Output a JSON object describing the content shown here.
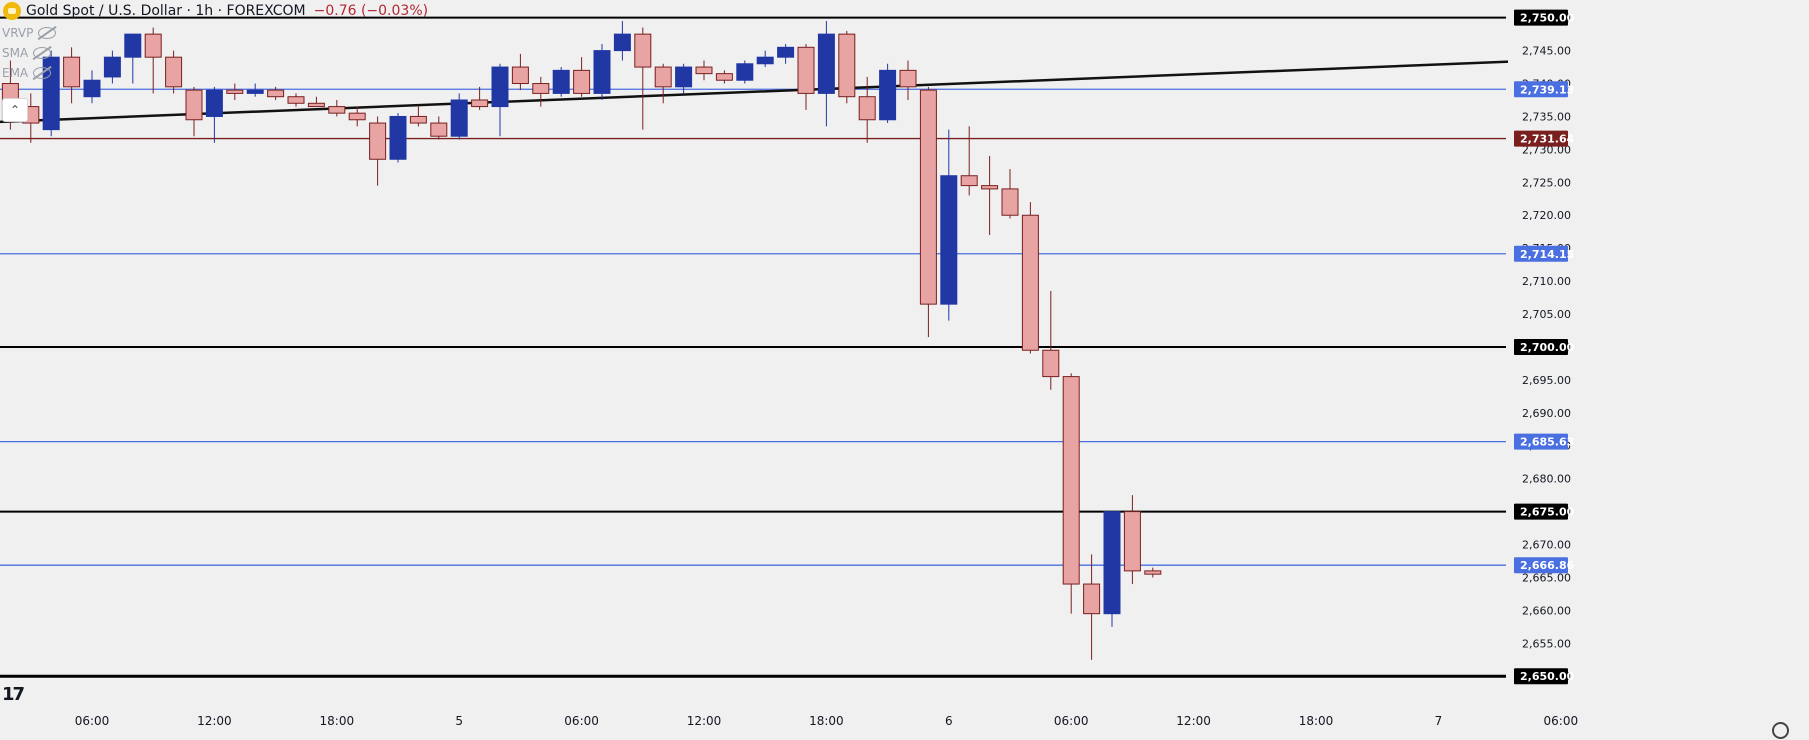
{
  "header": {
    "symbol": "Gold Spot / U.S. Dollar · 1h · FOREXCOM",
    "change": "−0.76 (−0.03%)"
  },
  "indicators": [
    {
      "label": "VRVP",
      "icon": "eye-off-icon"
    },
    {
      "label": "SMA",
      "icon": "eye-off-icon"
    },
    {
      "label": "EMA",
      "icon": "eye-off-icon"
    }
  ],
  "collapse_icon": "chevron-up-icon",
  "logo_text": "17",
  "colors": {
    "background": "#f0f0f0",
    "bull": "#2137a3",
    "bear": "#e8a3a3",
    "bear_border": "#7a1f1f",
    "blue_level": "#4a6fe0",
    "black_level": "#000000",
    "red_level": "#7a1f1f",
    "trendline": "#111111"
  },
  "chart_data": {
    "type": "candlestick",
    "title": "Gold Spot / U.S. Dollar · 1h · FOREXCOM",
    "ylim": [
      2647,
      2752
    ],
    "y_ticks": [
      "2,650.00",
      "2,655.00",
      "2,660.00",
      "2,665.00",
      "2,670.00",
      "2,675.00",
      "2,680.00",
      "2,685.00",
      "2,690.00",
      "2,695.00",
      "2,700.00",
      "2,705.00",
      "2,710.00",
      "2,715.00",
      "2,720.00",
      "2,725.00",
      "2,730.00",
      "2,735.00",
      "2,740.00",
      "2,745.00",
      "2,750.00"
    ],
    "x_ticks": [
      {
        "label": "06:00",
        "t": "4 06:00"
      },
      {
        "label": "12:00",
        "t": "4 12:00"
      },
      {
        "label": "18:00",
        "t": "4 18:00"
      },
      {
        "label": "5",
        "t": "5 00:00"
      },
      {
        "label": "06:00",
        "t": "5 06:00"
      },
      {
        "label": "12:00",
        "t": "5 12:00"
      },
      {
        "label": "18:00",
        "t": "5 18:00"
      },
      {
        "label": "6",
        "t": "6 00:00"
      },
      {
        "label": "06:00",
        "t": "6 06:00"
      },
      {
        "label": "12:00",
        "t": "6 12:00"
      },
      {
        "label": "18:00",
        "t": "6 18:00"
      },
      {
        "label": "7",
        "t": "7 00:00"
      },
      {
        "label": "06:00",
        "t": "7 06:00"
      }
    ],
    "candles": [
      {
        "t": "4 02:00",
        "o": 2740.0,
        "h": 2743.5,
        "l": 2733.0,
        "c": 2734.5
      },
      {
        "t": "4 03:00",
        "o": 2736.5,
        "h": 2738.5,
        "l": 2731.0,
        "c": 2734.0
      },
      {
        "t": "4 04:00",
        "o": 2733.0,
        "h": 2745.0,
        "l": 2732.0,
        "c": 2744.0
      },
      {
        "t": "4 05:00",
        "o": 2744.0,
        "h": 2745.5,
        "l": 2737.0,
        "c": 2739.5
      },
      {
        "t": "4 06:00",
        "o": 2738.0,
        "h": 2742.0,
        "l": 2737.0,
        "c": 2740.5
      },
      {
        "t": "4 07:00",
        "o": 2741.0,
        "h": 2745.0,
        "l": 2740.0,
        "c": 2744.0
      },
      {
        "t": "4 08:00",
        "o": 2744.0,
        "h": 2747.0,
        "l": 2740.0,
        "c": 2747.5
      },
      {
        "t": "4 09:00",
        "o": 2747.5,
        "h": 2748.5,
        "l": 2738.5,
        "c": 2744.0
      },
      {
        "t": "4 10:00",
        "o": 2744.0,
        "h": 2745.0,
        "l": 2738.5,
        "c": 2739.5
      },
      {
        "t": "4 11:00",
        "o": 2739.0,
        "h": 2739.5,
        "l": 2732.0,
        "c": 2734.5
      },
      {
        "t": "4 12:00",
        "o": 2735.0,
        "h": 2739.5,
        "l": 2731.0,
        "c": 2739.0
      },
      {
        "t": "4 13:00",
        "o": 2739.0,
        "h": 2740.0,
        "l": 2737.5,
        "c": 2738.5
      },
      {
        "t": "4 14:00",
        "o": 2738.5,
        "h": 2740.0,
        "l": 2738.0,
        "c": 2739.0
      },
      {
        "t": "4 15:00",
        "o": 2739.0,
        "h": 2739.5,
        "l": 2737.5,
        "c": 2738.0
      },
      {
        "t": "4 16:00",
        "o": 2738.0,
        "h": 2738.5,
        "l": 2736.5,
        "c": 2737.0
      },
      {
        "t": "4 17:00",
        "o": 2737.0,
        "h": 2738.0,
        "l": 2736.5,
        "c": 2736.5
      },
      {
        "t": "4 18:00",
        "o": 2736.5,
        "h": 2737.5,
        "l": 2735.0,
        "c": 2735.5
      },
      {
        "t": "4 19:00",
        "o": 2735.5,
        "h": 2736.5,
        "l": 2733.5,
        "c": 2734.5
      },
      {
        "t": "4 20:00",
        "o": 2734.0,
        "h": 2735.0,
        "l": 2724.5,
        "c": 2728.5
      },
      {
        "t": "4 21:00",
        "o": 2728.5,
        "h": 2735.5,
        "l": 2728.0,
        "c": 2735.0
      },
      {
        "t": "4 22:00",
        "o": 2735.0,
        "h": 2736.5,
        "l": 2733.5,
        "c": 2734.0
      },
      {
        "t": "4 23:00",
        "o": 2734.0,
        "h": 2735.0,
        "l": 2731.5,
        "c": 2732.0
      },
      {
        "t": "5 00:00",
        "o": 2732.0,
        "h": 2738.5,
        "l": 2731.5,
        "c": 2737.5
      },
      {
        "t": "5 01:00",
        "o": 2737.5,
        "h": 2739.5,
        "l": 2736.0,
        "c": 2736.5
      },
      {
        "t": "5 02:00",
        "o": 2736.5,
        "h": 2743.0,
        "l": 2732.0,
        "c": 2742.5
      },
      {
        "t": "5 03:00",
        "o": 2742.5,
        "h": 2744.5,
        "l": 2739.0,
        "c": 2740.0
      },
      {
        "t": "5 04:00",
        "o": 2740.0,
        "h": 2741.0,
        "l": 2736.5,
        "c": 2738.5
      },
      {
        "t": "5 05:00",
        "o": 2738.5,
        "h": 2742.5,
        "l": 2738.0,
        "c": 2742.0
      },
      {
        "t": "5 06:00",
        "o": 2742.0,
        "h": 2744.0,
        "l": 2738.0,
        "c": 2738.5
      },
      {
        "t": "5 07:00",
        "o": 2738.5,
        "h": 2746.0,
        "l": 2737.5,
        "c": 2745.0
      },
      {
        "t": "5 08:00",
        "o": 2745.0,
        "h": 2749.5,
        "l": 2743.5,
        "c": 2747.5
      },
      {
        "t": "5 09:00",
        "o": 2747.5,
        "h": 2748.5,
        "l": 2733.0,
        "c": 2742.5
      },
      {
        "t": "5 10:00",
        "o": 2742.5,
        "h": 2743.0,
        "l": 2737.0,
        "c": 2739.5
      },
      {
        "t": "5 11:00",
        "o": 2739.5,
        "h": 2743.0,
        "l": 2738.5,
        "c": 2742.5
      },
      {
        "t": "5 12:00",
        "o": 2742.5,
        "h": 2743.5,
        "l": 2740.5,
        "c": 2741.5
      },
      {
        "t": "5 13:00",
        "o": 2741.5,
        "h": 2742.0,
        "l": 2740.0,
        "c": 2740.5
      },
      {
        "t": "5 14:00",
        "o": 2740.5,
        "h": 2743.5,
        "l": 2740.0,
        "c": 2743.0
      },
      {
        "t": "5 15:00",
        "o": 2743.0,
        "h": 2745.0,
        "l": 2742.5,
        "c": 2744.0
      },
      {
        "t": "5 16:00",
        "o": 2744.0,
        "h": 2746.0,
        "l": 2743.0,
        "c": 2745.5
      },
      {
        "t": "5 17:00",
        "o": 2745.5,
        "h": 2746.0,
        "l": 2736.0,
        "c": 2738.5
      },
      {
        "t": "5 18:00",
        "o": 2738.5,
        "h": 2749.5,
        "l": 2733.5,
        "c": 2747.5
      },
      {
        "t": "5 19:00",
        "o": 2747.5,
        "h": 2748.0,
        "l": 2737.0,
        "c": 2738.0
      },
      {
        "t": "5 20:00",
        "o": 2738.0,
        "h": 2741.0,
        "l": 2731.0,
        "c": 2734.5
      },
      {
        "t": "5 21:00",
        "o": 2734.5,
        "h": 2743.0,
        "l": 2734.0,
        "c": 2742.0
      },
      {
        "t": "5 22:00",
        "o": 2742.0,
        "h": 2743.5,
        "l": 2737.5,
        "c": 2739.5
      },
      {
        "t": "5 23:00",
        "o": 2739.0,
        "h": 2739.5,
        "l": 2701.5,
        "c": 2706.5
      },
      {
        "t": "6 00:00",
        "o": 2706.5,
        "h": 2733.0,
        "l": 2704.0,
        "c": 2726.0
      },
      {
        "t": "6 01:00",
        "o": 2726.0,
        "h": 2733.5,
        "l": 2723.0,
        "c": 2724.5
      },
      {
        "t": "6 02:00",
        "o": 2724.5,
        "h": 2729.0,
        "l": 2717.0,
        "c": 2724.0
      },
      {
        "t": "6 03:00",
        "o": 2724.0,
        "h": 2727.0,
        "l": 2719.5,
        "c": 2720.0
      },
      {
        "t": "6 04:00",
        "o": 2720.0,
        "h": 2722.0,
        "l": 2699.0,
        "c": 2699.5
      },
      {
        "t": "6 05:00",
        "o": 2699.5,
        "h": 2708.5,
        "l": 2693.5,
        "c": 2695.5
      },
      {
        "t": "6 06:00",
        "o": 2695.5,
        "h": 2696.0,
        "l": 2659.5,
        "c": 2664.0
      },
      {
        "t": "6 07:00",
        "o": 2664.0,
        "h": 2668.5,
        "l": 2652.5,
        "c": 2659.5
      },
      {
        "t": "6 08:00",
        "o": 2659.5,
        "h": 2675.0,
        "l": 2657.5,
        "c": 2675.0
      },
      {
        "t": "6 09:00",
        "o": 2675.0,
        "h": 2677.5,
        "l": 2664.0,
        "c": 2666.0
      },
      {
        "t": "6 10:00",
        "o": 2666.0,
        "h": 2666.5,
        "l": 2665.0,
        "c": 2665.5
      }
    ],
    "levels": [
      {
        "value": 2750.0,
        "label": "2,750.00",
        "style": "black"
      },
      {
        "value": 2739.13,
        "label": "2,739.13",
        "style": "blue"
      },
      {
        "value": 2731.64,
        "label": "2,731.64",
        "style": "red"
      },
      {
        "value": 2714.15,
        "label": "2,714.15",
        "style": "blue"
      },
      {
        "value": 2700.0,
        "label": "2,700.00",
        "style": "black"
      },
      {
        "value": 2685.63,
        "label": "2,685.63",
        "style": "blue"
      },
      {
        "value": 2675.0,
        "label": "2,675.00",
        "style": "black"
      },
      {
        "value": 2666.86,
        "label": "2,666.86",
        "style": "blue"
      },
      {
        "value": 2650.0,
        "label": "2,650.00",
        "style": "black"
      }
    ],
    "trendline": {
      "from": {
        "t": "4 00:00",
        "y": 2734.0
      },
      "to": {
        "t": "7 09:00",
        "y": 2744.0
      }
    }
  }
}
